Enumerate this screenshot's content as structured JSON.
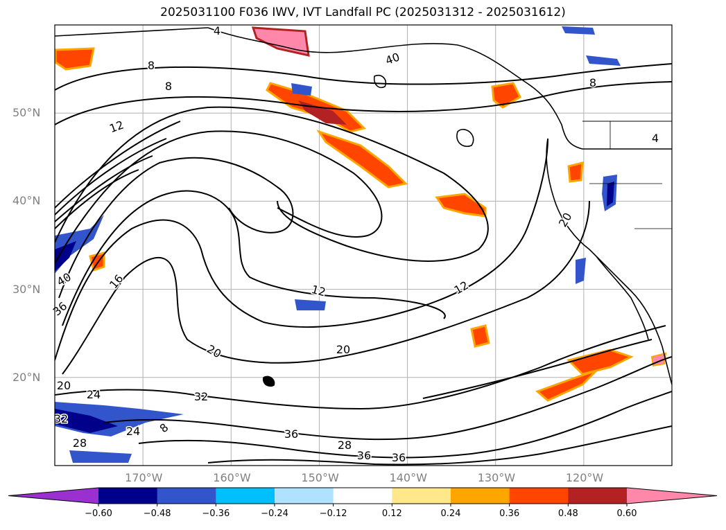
{
  "title": "2025031100 F036 IWV, IVT Landfall PC (2025031312 - 2025031612)",
  "map": {
    "lon_range": [
      -180,
      -110
    ],
    "lat_range": [
      10,
      60
    ],
    "lat_ticks": [
      {
        "value": 50,
        "label": "50°N"
      },
      {
        "value": 40,
        "label": "40°N"
      },
      {
        "value": 30,
        "label": "30°N"
      },
      {
        "value": 20,
        "label": "20°N"
      }
    ],
    "lon_ticks": [
      {
        "value": -170,
        "label": "170°W"
      },
      {
        "value": -160,
        "label": "160°W"
      },
      {
        "value": -150,
        "label": "150°W"
      },
      {
        "value": -140,
        "label": "140°W"
      },
      {
        "value": -130,
        "label": "130°W"
      },
      {
        "value": -120,
        "label": "120°W"
      }
    ],
    "gridlines": true,
    "contour_labels": [
      "4",
      "8",
      "8",
      "12",
      "12",
      "12",
      "16",
      "20",
      "20",
      "20",
      "24",
      "24",
      "28",
      "28",
      "32",
      "32",
      "36",
      "36",
      "36",
      "36",
      "40",
      "40",
      "8",
      "4",
      "8",
      "20"
    ],
    "line_color": "#000000"
  },
  "colorbar": {
    "labels": [
      "−0.60",
      "−0.48",
      "−0.36",
      "−0.24",
      "−0.12",
      "0.12",
      "0.24",
      "0.36",
      "0.48",
      "0.60"
    ],
    "colors": [
      "#9b30d0",
      "#00008b",
      "#3355cc",
      "#00bfff",
      "#b0e2ff",
      "#ffffff",
      "#ffe88a",
      "#ffa500",
      "#ff4500",
      "#b22222",
      "#ff88aa"
    ],
    "extend": "both"
  }
}
